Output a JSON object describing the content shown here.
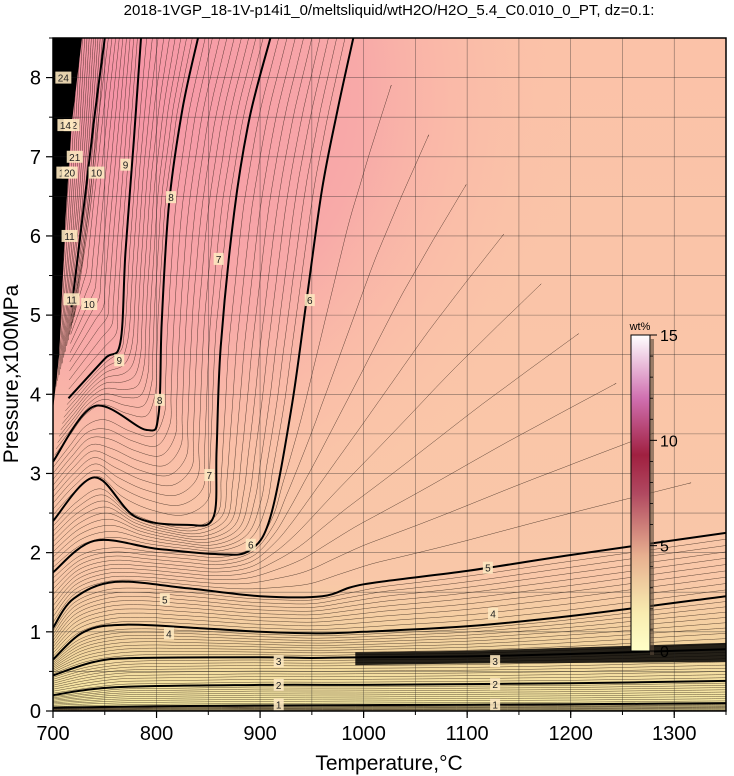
{
  "chart_data": {
    "type": "contour",
    "title": "2018-1VGP_18-1V-p14i1_0/meltsliquid/wtH2O/H2O_5.4_C0.010_0_PT, dz=0.1:",
    "xlabel": "Temperature,°C",
    "ylabel": "Pressure,x100MPa",
    "xlim": [
      700,
      1350
    ],
    "ylim": [
      0,
      8.5
    ],
    "x_ticks": [
      700,
      800,
      900,
      1000,
      1100,
      1200,
      1300
    ],
    "y_ticks": [
      0,
      1,
      2,
      3,
      4,
      5,
      6,
      7,
      8
    ],
    "grid": true,
    "contour_interval": 0.1,
    "colorbar": {
      "unit": "wt%",
      "ticks": [
        0,
        5,
        10,
        15
      ],
      "range": [
        0,
        15
      ],
      "placement": "right-inside",
      "colors": [
        "#ffffc8",
        "#f8ecb0",
        "#e8b090",
        "#c06070",
        "#a02040",
        "#e080c0",
        "#ffffff"
      ]
    },
    "colors": {
      "low_fill": "#f6eaa6",
      "mid_fill": "#fbc3aa",
      "high_fill": "#f5a0a4",
      "saturated_fill": "#000000",
      "contour_line": "#000000"
    },
    "major_contours": [
      {
        "label": "1",
        "points": [
          [
            700,
            0.04
          ],
          [
            800,
            0.06
          ],
          [
            900,
            0.07
          ],
          [
            1000,
            0.075
          ],
          [
            1100,
            0.08
          ],
          [
            1200,
            0.085
          ],
          [
            1350,
            0.1
          ]
        ]
      },
      {
        "label": "2",
        "points": [
          [
            700,
            0.2
          ],
          [
            760,
            0.3
          ],
          [
            900,
            0.33
          ],
          [
            1000,
            0.33
          ],
          [
            1100,
            0.34
          ],
          [
            1200,
            0.35
          ],
          [
            1350,
            0.38
          ]
        ]
      },
      {
        "label": "3",
        "points": [
          [
            700,
            0.45
          ],
          [
            740,
            0.62
          ],
          [
            780,
            0.67
          ],
          [
            900,
            0.68
          ],
          [
            950,
            0.67
          ],
          [
            1000,
            0.68
          ],
          [
            1100,
            0.69
          ],
          [
            1200,
            0.72
          ],
          [
            1350,
            0.78
          ]
        ]
      },
      {
        "label": "4",
        "points": [
          [
            700,
            0.65
          ],
          [
            730,
            1.0
          ],
          [
            770,
            1.09
          ],
          [
            850,
            1.04
          ],
          [
            900,
            1.0
          ],
          [
            960,
            0.98
          ],
          [
            1000,
            1.0
          ],
          [
            1100,
            1.07
          ],
          [
            1200,
            1.2
          ],
          [
            1350,
            1.45
          ]
        ]
      },
      {
        "label": "5",
        "points": [
          [
            700,
            1.05
          ],
          [
            720,
            1.42
          ],
          [
            760,
            1.63
          ],
          [
            830,
            1.55
          ],
          [
            900,
            1.45
          ],
          [
            960,
            1.45
          ],
          [
            1000,
            1.6
          ],
          [
            1100,
            1.77
          ],
          [
            1200,
            1.97
          ],
          [
            1350,
            2.25
          ]
        ]
      },
      {
        "label": "6",
        "points": [
          [
            700,
            1.75
          ],
          [
            740,
            2.15
          ],
          [
            800,
            2.05
          ],
          [
            860,
            1.98
          ],
          [
            890,
            2.03
          ],
          [
            910,
            2.45
          ],
          [
            930,
            3.8
          ],
          [
            945,
            5.2
          ],
          [
            960,
            6.6
          ],
          [
            975,
            7.6
          ],
          [
            990,
            8.5
          ]
        ]
      },
      {
        "label": "7",
        "points": [
          [
            700,
            2.4
          ],
          [
            740,
            2.95
          ],
          [
            780,
            2.45
          ],
          [
            830,
            2.35
          ],
          [
            855,
            2.45
          ],
          [
            858,
            3.3
          ],
          [
            862,
            4.6
          ],
          [
            875,
            6.3
          ],
          [
            890,
            7.5
          ],
          [
            910,
            8.5
          ]
        ]
      },
      {
        "label": "8",
        "points": [
          [
            700,
            3.15
          ],
          [
            740,
            3.85
          ],
          [
            790,
            3.55
          ],
          [
            802,
            3.75
          ],
          [
            805,
            4.9
          ],
          [
            812,
            6.4
          ],
          [
            825,
            7.6
          ],
          [
            840,
            8.5
          ]
        ]
      },
      {
        "label": "9",
        "points": [
          [
            715,
            3.95
          ],
          [
            750,
            4.45
          ],
          [
            765,
            4.65
          ],
          [
            770,
            5.8
          ],
          [
            778,
            7.2
          ],
          [
            785,
            8.5
          ]
        ]
      },
      {
        "label": "10",
        "points": [
          [
            718,
            5.1
          ],
          [
            730,
            6.4
          ],
          [
            740,
            7.5
          ],
          [
            750,
            8.5
          ]
        ]
      }
    ],
    "contour_labels": [
      {
        "text": "1",
        "x": 918,
        "y": 0.08
      },
      {
        "text": "1",
        "x": 1127,
        "y": 0.08
      },
      {
        "text": "2",
        "x": 918,
        "y": 0.33
      },
      {
        "text": "2",
        "x": 1127,
        "y": 0.34
      },
      {
        "text": "3",
        "x": 918,
        "y": 0.63
      },
      {
        "text": "3",
        "x": 1127,
        "y": 0.63
      },
      {
        "text": "4",
        "x": 812,
        "y": 0.98
      },
      {
        "text": "4",
        "x": 1125,
        "y": 1.23
      },
      {
        "text": "5",
        "x": 808,
        "y": 1.41
      },
      {
        "text": "5",
        "x": 1120,
        "y": 1.81
      },
      {
        "text": "6",
        "x": 891,
        "y": 2.1
      },
      {
        "text": "6",
        "x": 948,
        "y": 5.19
      },
      {
        "text": "7",
        "x": 851,
        "y": 2.98
      },
      {
        "text": "7",
        "x": 860,
        "y": 5.71
      },
      {
        "text": "8",
        "x": 803,
        "y": 3.93
      },
      {
        "text": "8",
        "x": 814,
        "y": 6.49
      },
      {
        "text": "9",
        "x": 764,
        "y": 4.43
      },
      {
        "text": "9",
        "x": 770,
        "y": 6.9
      },
      {
        "text": "10",
        "x": 735,
        "y": 5.14
      },
      {
        "text": "10",
        "x": 742,
        "y": 6.8
      },
      {
        "text": "11",
        "x": 718,
        "y": 5.2
      },
      {
        "text": "11",
        "x": 716,
        "y": 6.0
      },
      {
        "text": "12",
        "x": 718,
        "y": 7.4
      },
      {
        "text": "14",
        "x": 712,
        "y": 7.4
      },
      {
        "text": "19",
        "x": 711,
        "y": 6.8
      },
      {
        "text": "20",
        "x": 716,
        "y": 6.8
      },
      {
        "text": "21",
        "x": 721,
        "y": 7.0
      },
      {
        "text": "24",
        "x": 710,
        "y": 8.0
      }
    ]
  }
}
